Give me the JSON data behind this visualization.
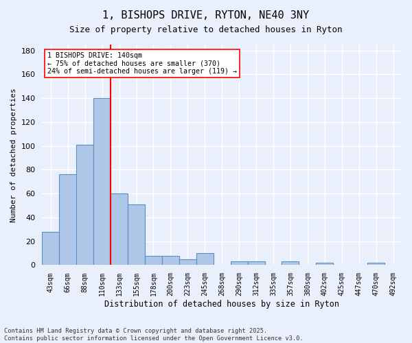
{
  "title_line1": "1, BISHOPS DRIVE, RYTON, NE40 3NY",
  "title_line2": "Size of property relative to detached houses in Ryton",
  "xlabel": "Distribution of detached houses by size in Ryton",
  "ylabel": "Number of detached properties",
  "bar_values": [
    28,
    76,
    101,
    140,
    60,
    51,
    8,
    8,
    5,
    10,
    0,
    3,
    3,
    0,
    3,
    0,
    2,
    0,
    0,
    2,
    0
  ],
  "categories": [
    "43sqm",
    "66sqm",
    "88sqm",
    "110sqm",
    "133sqm",
    "155sqm",
    "178sqm",
    "200sqm",
    "223sqm",
    "245sqm",
    "268sqm",
    "290sqm",
    "312sqm",
    "335sqm",
    "357sqm",
    "380sqm",
    "402sqm",
    "425sqm",
    "447sqm",
    "470sqm",
    "492sqm"
  ],
  "bar_color": "#aec6e8",
  "bar_edge_color": "#5a8fc2",
  "background_color": "#eaf0fb",
  "grid_color": "#ffffff",
  "vline_pos": 3.5,
  "vline_color": "red",
  "annotation_text": "1 BISHOPS DRIVE: 140sqm\n← 75% of detached houses are smaller (370)\n24% of semi-detached houses are larger (119) →",
  "annotation_box_color": "white",
  "annotation_box_edge": "red",
  "ylim": [
    0,
    185
  ],
  "yticks": [
    0,
    20,
    40,
    60,
    80,
    100,
    120,
    140,
    160,
    180
  ],
  "footer_line1": "Contains HM Land Registry data © Crown copyright and database right 2025.",
  "footer_line2": "Contains public sector information licensed under the Open Government Licence v3.0."
}
